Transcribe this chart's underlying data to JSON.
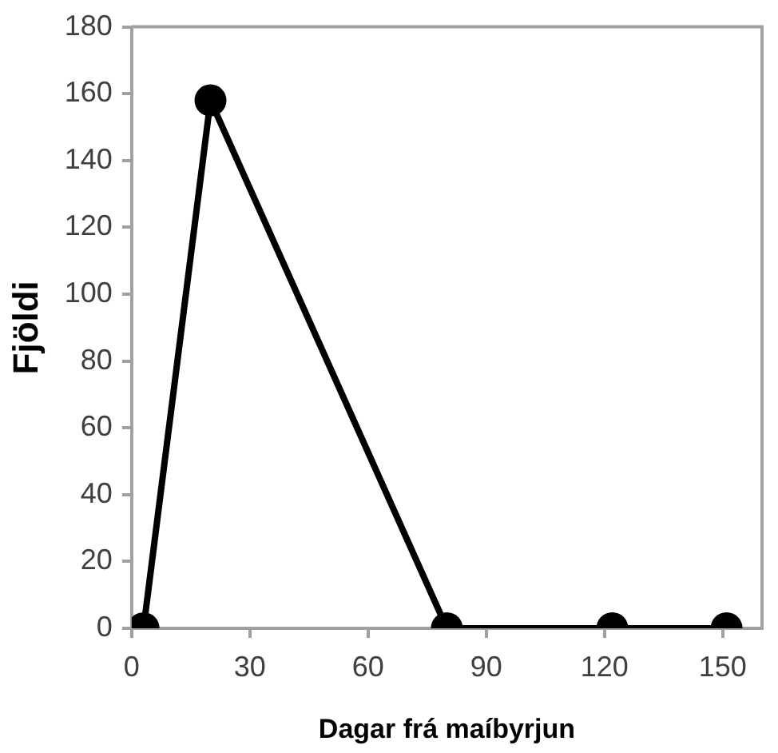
{
  "chart_data": {
    "type": "line",
    "xlabel": "Dagar frá maíbyrjun",
    "ylabel": "Fjöldi",
    "x": [
      3,
      20,
      80,
      122,
      151
    ],
    "series": [
      {
        "color": "#000000",
        "values": [
          0,
          158,
          0,
          0,
          0
        ]
      }
    ],
    "xlim": [
      0,
      160
    ],
    "xticks": [
      0,
      30,
      60,
      90,
      120,
      150
    ],
    "ylim": [
      0,
      180
    ],
    "yticks": [
      0,
      20,
      40,
      60,
      80,
      100,
      120,
      140,
      160,
      180
    ],
    "grid": false,
    "legend": false,
    "marker": "circle",
    "line_style": "solid"
  }
}
